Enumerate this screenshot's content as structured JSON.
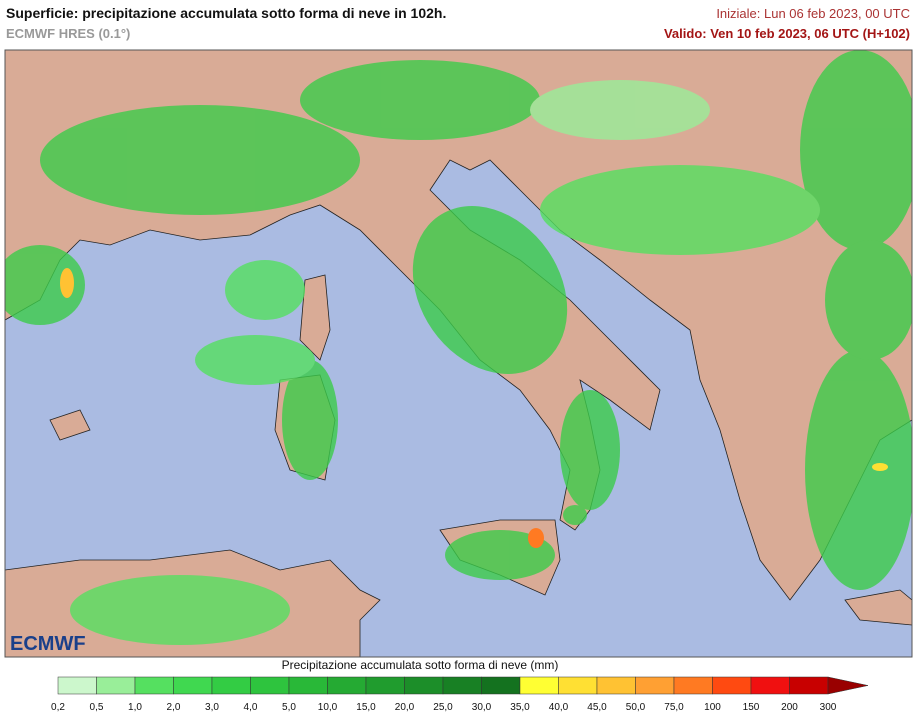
{
  "header": {
    "title": "Superficie: precipitazione accumulata sotto forma di neve in 102h.",
    "subtitle": "ECMWF HRES (0.1°)",
    "initial": "Iniziale: Lun 06 feb 2023, 00 UTC",
    "valid": "Valido: Ven 10 feb 2023, 06 UTC (H+102)"
  },
  "logo": "ECMWF",
  "legend": {
    "title": "Precipitazione accumulata sotto forma di neve (mm)",
    "labels": [
      "0,2",
      "0,5",
      "1,0",
      "2,0",
      "3,0",
      "4,0",
      "5,0",
      "10,0",
      "15,0",
      "20,0",
      "25,0",
      "30,0",
      "35,0",
      "40,0",
      "45,0",
      "50,0",
      "75,0",
      "100",
      "150",
      "200",
      "300"
    ],
    "colors": [
      "#ccf7cc",
      "#99ee99",
      "#55e060",
      "#40d850",
      "#33cc44",
      "#2ec43e",
      "#29b838",
      "#25aa33",
      "#209c2e",
      "#1c8e29",
      "#188024",
      "#14721f",
      "#ffff33",
      "#ffe033",
      "#ffc233",
      "#ffa033",
      "#ff7a22",
      "#ff4a11",
      "#f01010",
      "#c80000"
    ],
    "overflow_color": "#990000"
  }
}
